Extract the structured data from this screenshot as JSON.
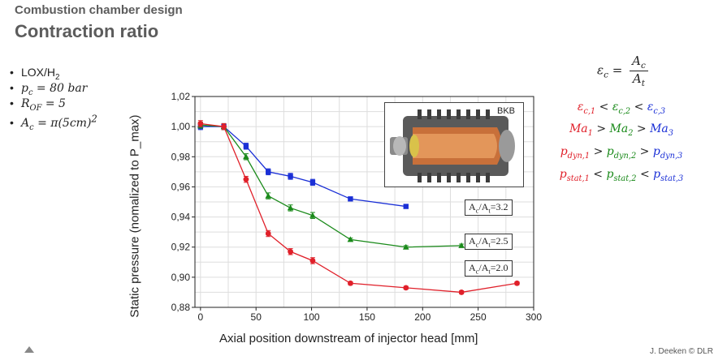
{
  "header": {
    "subtitle": "Combustion chamber design",
    "title": "Contraction ratio"
  },
  "bullets": {
    "propellant": "LOX/H",
    "propellant_sub": "2",
    "pc": "p",
    "pc_sub": "c",
    "pc_value": " = 80 bar",
    "rof": "R",
    "rof_sub": "OF",
    "rof_value": " = 5",
    "ac": "A",
    "ac_sub": "c",
    "ac_value": " = π(5cm)",
    "ac_sup": "2"
  },
  "equations": {
    "eps": "ε",
    "eps_sub": "c",
    "eq": "=",
    "num": "A",
    "num_sub": "c",
    "den": "A",
    "den_sub": "t",
    "rel1": [
      "ε",
      "c,1",
      " < ",
      "ε",
      "c,2",
      " < ",
      "ε",
      "c,3"
    ],
    "rel2": [
      "Ma",
      "1",
      " > ",
      "Ma",
      "2",
      " > ",
      "Ma",
      "3"
    ],
    "rel3": [
      "p",
      "dyn,1",
      " > ",
      "p",
      "dyn,2",
      " > ",
      "p",
      "dyn,3"
    ],
    "rel4": [
      "p",
      "stat,1",
      " < ",
      "p",
      "stat,2",
      " < ",
      "p",
      "stat,3"
    ]
  },
  "photo": {
    "label": "BKB"
  },
  "footer": {
    "credit": "J. Deeken © DLR"
  },
  "colors": {
    "red": "#e0202a",
    "green": "#1a8a1a",
    "blue": "#1a2fd6"
  },
  "chart_data": {
    "type": "line",
    "xlabel": "Axial position downstream of injector head [mm]",
    "ylabel": "Static pressure (nomalized to P_max)",
    "xlim": [
      -5,
      300
    ],
    "ylim": [
      0.88,
      1.02
    ],
    "xticks": [
      0,
      50,
      100,
      150,
      200,
      250,
      300
    ],
    "yticks": [
      0.88,
      0.9,
      0.92,
      0.94,
      0.96,
      0.98,
      1.0,
      1.02
    ],
    "ytick_labels": [
      "0,88",
      "0,90",
      "0,92",
      "0,94",
      "0,96",
      "0,98",
      "1,00",
      "1,02"
    ],
    "grid": true,
    "series": [
      {
        "name": "A_c/A_t=3.2",
        "label_main": "A",
        "label_sub1": "c",
        "label_mid": "/A",
        "label_sub2": "t",
        "label_tail": "=3.2",
        "color": "#1a2fd6",
        "marker": "square",
        "x": [
          0,
          21,
          41,
          61,
          81,
          101,
          135,
          185
        ],
        "y": [
          1.0,
          1.0,
          0.987,
          0.97,
          0.967,
          0.963,
          0.952,
          0.947
        ],
        "err": [
          0.002,
          0.002,
          0.002,
          0.002,
          0.002,
          0.002,
          0.001,
          0.001
        ]
      },
      {
        "name": "A_c/A_t=2.5",
        "label_main": "A",
        "label_sub1": "c",
        "label_mid": "/A",
        "label_sub2": "t",
        "label_tail": "=2.5",
        "color": "#1a8a1a",
        "marker": "triangle",
        "x": [
          0,
          21,
          41,
          61,
          81,
          101,
          135,
          185,
          235
        ],
        "y": [
          1.001,
          1.0,
          0.98,
          0.954,
          0.946,
          0.941,
          0.925,
          0.92,
          0.921
        ],
        "err": [
          0.002,
          0.002,
          0.002,
          0.002,
          0.002,
          0.002,
          0.001,
          0.001,
          0.001
        ]
      },
      {
        "name": "A_c/A_t=2.0",
        "label_main": "A",
        "label_sub1": "c",
        "label_mid": "/A",
        "label_sub2": "t",
        "label_tail": "=2.0",
        "color": "#e0202a",
        "marker": "circle",
        "x": [
          0,
          21,
          41,
          61,
          81,
          101,
          135,
          185,
          235,
          285
        ],
        "y": [
          1.002,
          1.0,
          0.965,
          0.929,
          0.917,
          0.911,
          0.896,
          0.893,
          0.89,
          0.896
        ],
        "err": [
          0.002,
          0.002,
          0.002,
          0.002,
          0.002,
          0.002,
          0.001,
          0.001,
          0.001,
          0.001
        ]
      }
    ]
  }
}
